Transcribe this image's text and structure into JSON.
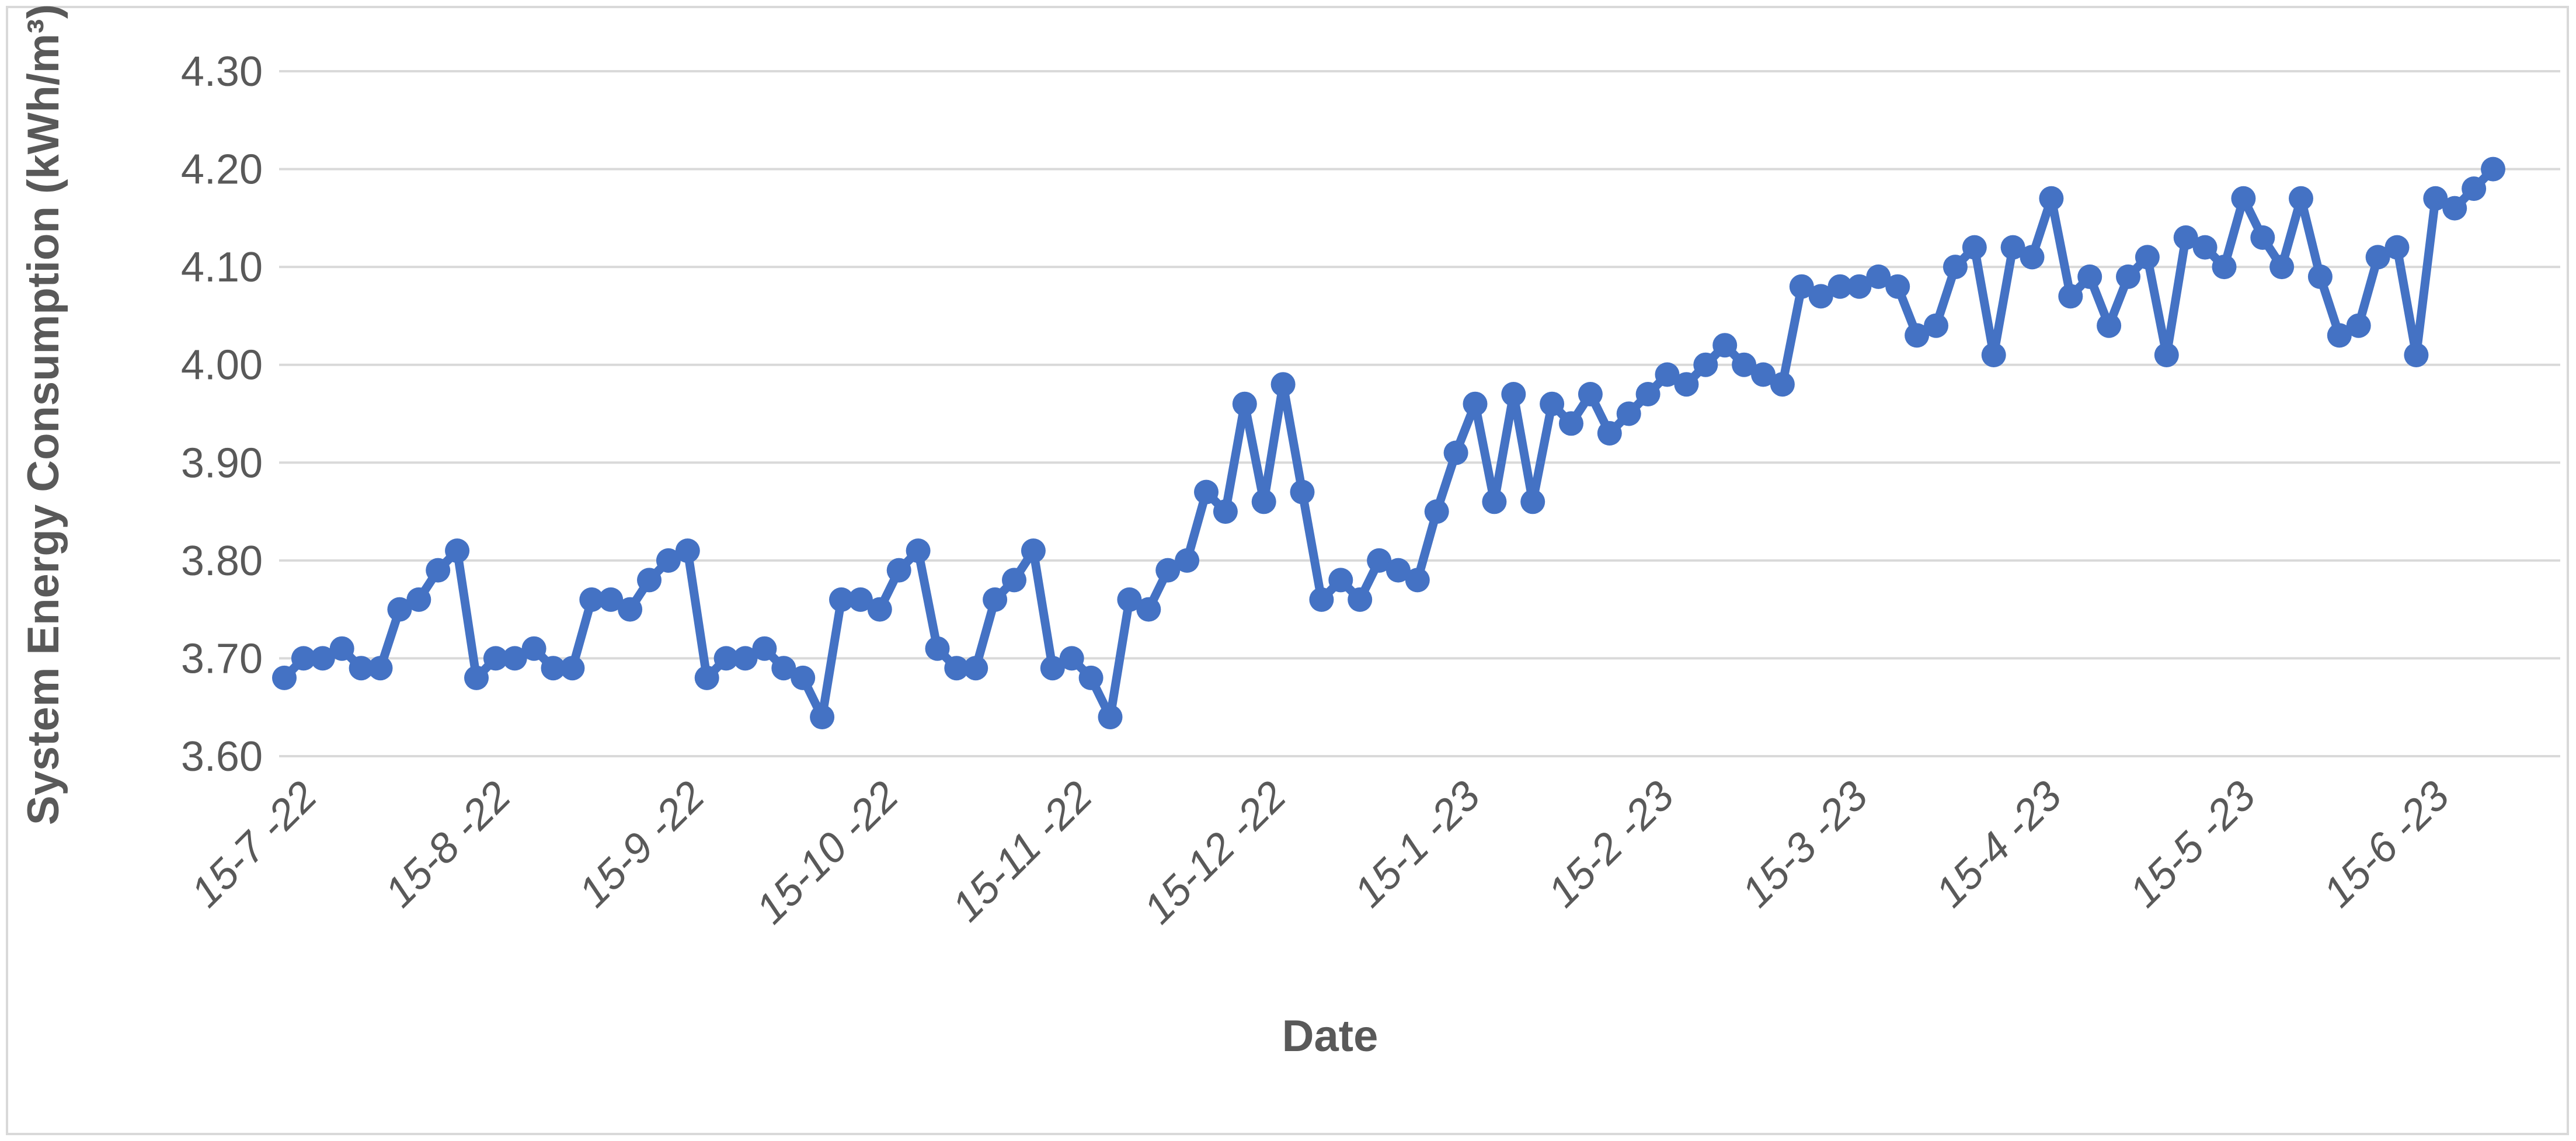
{
  "chart_data": {
    "type": "line",
    "title": "",
    "xlabel": "Date",
    "ylabel": "System Energy Consumption (kWh/m³)",
    "ylim": [
      3.6,
      4.3
    ],
    "ytick_step": 0.1,
    "ytick_labels": [
      "3.60",
      "3.70",
      "3.80",
      "3.90",
      "4.00",
      "4.10",
      "4.20",
      "4.30"
    ],
    "xtick_labels": [
      "15-7 -22",
      "15-8 -22",
      "15-9 -22",
      "15-10 -22",
      "15-11 -22",
      "15-12 -22",
      "15-1 -23",
      "15-2 -23",
      "15-3 -23",
      "15-4 -23",
      "15-5 -23",
      "15-6 -23"
    ],
    "grid": "horizontal",
    "legend": "none",
    "line_color": "#4472C4",
    "grid_color": "#D9D9D9",
    "text_color": "#595959",
    "border_color": "#D9D9D9",
    "marker": "circle",
    "series": [
      {
        "name": "System Energy Consumption",
        "values": [
          3.68,
          3.7,
          3.7,
          3.71,
          3.69,
          3.69,
          3.75,
          3.76,
          3.79,
          3.81,
          3.68,
          3.7,
          3.7,
          3.71,
          3.69,
          3.69,
          3.76,
          3.76,
          3.75,
          3.78,
          3.8,
          3.81,
          3.68,
          3.7,
          3.7,
          3.71,
          3.69,
          3.68,
          3.64,
          3.76,
          3.76,
          3.75,
          3.79,
          3.81,
          3.71,
          3.69,
          3.69,
          3.76,
          3.78,
          3.81,
          3.69,
          3.7,
          3.68,
          3.64,
          3.76,
          3.75,
          3.79,
          3.8,
          3.87,
          3.85,
          3.96,
          3.86,
          3.98,
          3.87,
          3.76,
          3.78,
          3.76,
          3.8,
          3.79,
          3.78,
          3.85,
          3.91,
          3.96,
          3.86,
          3.97,
          3.86,
          3.96,
          3.94,
          3.97,
          3.93,
          3.95,
          3.97,
          3.99,
          3.98,
          4.0,
          4.02,
          4.0,
          3.99,
          3.98,
          4.08,
          4.07,
          4.08,
          4.08,
          4.09,
          4.08,
          4.03,
          4.04,
          4.1,
          4.12,
          4.01,
          4.12,
          4.11,
          4.17,
          4.07,
          4.09,
          4.04,
          4.09,
          4.11,
          4.01,
          4.13,
          4.12,
          4.1,
          4.17,
          4.13,
          4.1,
          4.17,
          4.09,
          4.03,
          4.04,
          4.11,
          4.12,
          4.01,
          4.17,
          4.16,
          4.18,
          4.2
        ]
      }
    ]
  },
  "layout_note_values_are_data_not_layout": "all rendered text above"
}
